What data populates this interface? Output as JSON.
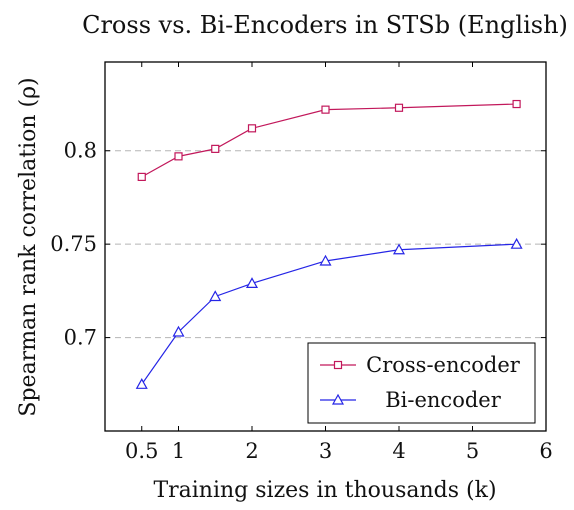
{
  "chart_data": {
    "type": "line",
    "title": "Cross vs. Bi-Encoders in STSb (English)",
    "xlabel": "Training sizes in thousands (k)",
    "ylabel": "Spearman rank correlation (ρ)",
    "xlim": [
      0,
      6
    ],
    "ylim": [
      0.65,
      0.8475
    ],
    "x_ticks": [
      0.5,
      1,
      2,
      3,
      4,
      5,
      6
    ],
    "x_tick_labels": [
      "0.5",
      "1",
      "2",
      "3",
      "4",
      "5",
      "6"
    ],
    "y_ticks": [
      0.7,
      0.75,
      0.8
    ],
    "y_tick_labels": [
      "0.7",
      "0.75",
      "0.8"
    ],
    "grid": "horizontal dashed",
    "legend_position": "bottom-right",
    "series": [
      {
        "name": "Cross-encoder",
        "color": "#c2185b",
        "marker": "square",
        "x": [
          0.5,
          1,
          1.5,
          2,
          3,
          4,
          5.6
        ],
        "y": [
          0.786,
          0.797,
          0.801,
          0.812,
          0.822,
          0.823,
          0.825
        ]
      },
      {
        "name": "Bi-encoder",
        "color": "#2525e6",
        "marker": "triangle",
        "x": [
          0.5,
          1,
          1.5,
          2,
          3,
          4,
          5.6
        ],
        "y": [
          0.675,
          0.703,
          0.722,
          0.729,
          0.741,
          0.747,
          0.75
        ]
      }
    ]
  }
}
